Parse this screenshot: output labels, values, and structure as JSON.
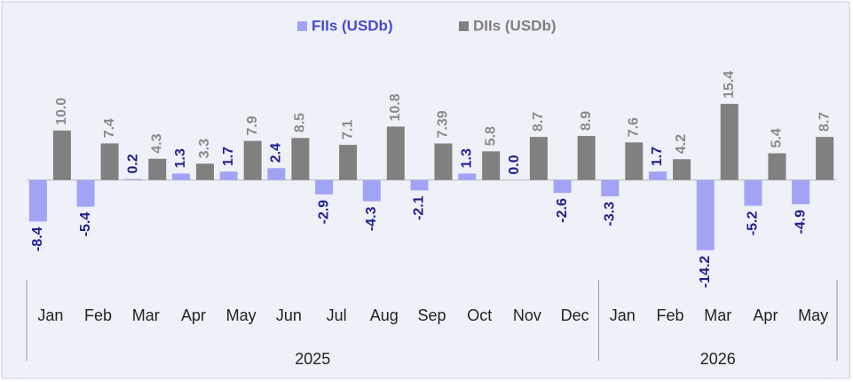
{
  "chart_data": {
    "type": "bar",
    "categories": [
      "Jan",
      "Feb",
      "Mar",
      "Apr",
      "May",
      "Jun",
      "Jul",
      "Aug",
      "Sep",
      "Oct",
      "Nov",
      "Dec",
      "Jan",
      "Feb",
      "Mar",
      "Apr",
      "May"
    ],
    "groups": [
      {
        "label": "2025",
        "size": 12
      },
      {
        "label": "2026",
        "size": 5
      }
    ],
    "series": [
      {
        "name": "FIIs (USDb)",
        "color": "#a3a3f5",
        "label_color": "#1f1f8f",
        "values": [
          -8.4,
          -5.4,
          0.2,
          1.3,
          1.7,
          2.4,
          -2.9,
          -4.3,
          -2.1,
          1.3,
          0.0,
          -2.6,
          -3.3,
          1.7,
          -14.2,
          -5.2,
          -4.9
        ],
        "value_labels": [
          "-8.4",
          "-5.4",
          "0.2",
          "1.3",
          "1.7",
          "2.4",
          "-2.9",
          "-4.3",
          "-2.1",
          "1.3",
          "0.0",
          "-2.6",
          "-3.3",
          "1.7",
          "-14.2",
          "-5.2",
          "-4.9"
        ]
      },
      {
        "name": "DIIs (USDb)",
        "color": "#808080",
        "label_color": "#8a8a8a",
        "values": [
          10.0,
          7.4,
          4.3,
          3.3,
          7.9,
          8.5,
          7.1,
          10.8,
          7.39,
          5.8,
          8.7,
          8.9,
          7.6,
          4.2,
          15.4,
          5.4,
          8.7
        ],
        "value_labels": [
          "10.0",
          "7.4",
          "4.3",
          "3.3",
          "7.9",
          "8.5",
          "7.1",
          "10.8",
          "7.39",
          "5.8",
          "8.7",
          "8.9",
          "7.6",
          "4.2",
          "15.4",
          "5.4",
          "8.7"
        ]
      }
    ],
    "ylim": [
      -20,
      31
    ],
    "legend": "top"
  }
}
